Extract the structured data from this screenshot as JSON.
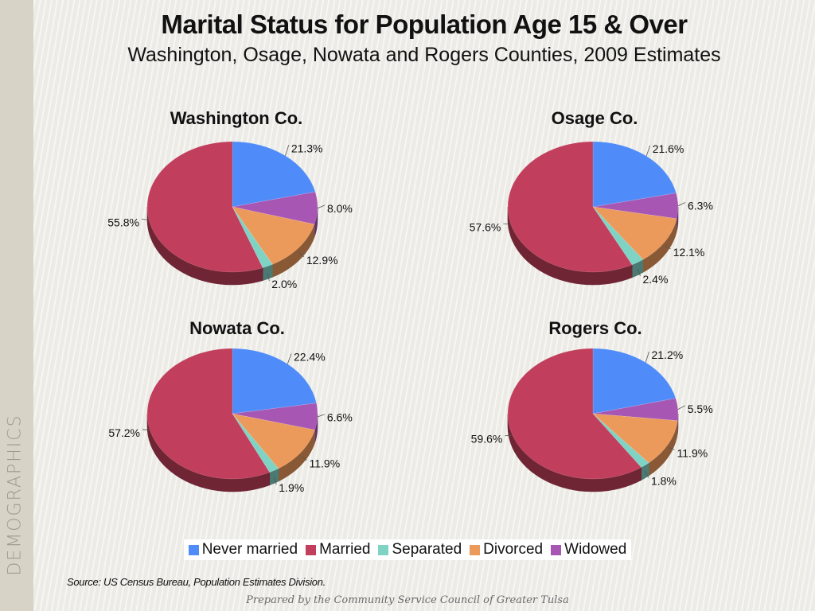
{
  "title": "Marital Status for Population Age 15 & Over",
  "subtitle": "Washington, Osage, Nowata and Rogers Counties, 2009 Estimates",
  "sidebar_label": "DEMOGRAPHICS",
  "source": "Source: US Census Bureau, Population Estimates Division.",
  "footer": "Prepared by the Community Service Council of Greater Tulsa",
  "colors": {
    "never_married": "#4f8cf9",
    "married": "#c13f5c",
    "separated": "#7fd3c4",
    "divorced": "#ec9a5b",
    "widowed": "#a757b3"
  },
  "chart_data": [
    {
      "type": "pie",
      "title": "Washington Co.",
      "categories": [
        "Never married",
        "Widowed",
        "Divorced",
        "Separated",
        "Married"
      ],
      "values": [
        21.3,
        8.0,
        12.9,
        2.0,
        55.8
      ],
      "labels": [
        "21.3%",
        "8.0%",
        "12.9%",
        "2.0%",
        "55.8%"
      ],
      "legend": "bottom"
    },
    {
      "type": "pie",
      "title": "Osage Co.",
      "categories": [
        "Never married",
        "Widowed",
        "Divorced",
        "Separated",
        "Married"
      ],
      "values": [
        21.6,
        6.3,
        12.1,
        2.4,
        57.6
      ],
      "labels": [
        "21.6%",
        "6.3%",
        "12.1%",
        "2.4%",
        "57.6%"
      ],
      "legend": "bottom"
    },
    {
      "type": "pie",
      "title": "Nowata Co.",
      "categories": [
        "Never married",
        "Widowed",
        "Divorced",
        "Separated",
        "Married"
      ],
      "values": [
        22.4,
        6.6,
        11.9,
        1.9,
        57.2
      ],
      "labels": [
        "22.4%",
        "6.6%",
        "11.9%",
        "1.9%",
        "57.2%"
      ],
      "legend": "bottom"
    },
    {
      "type": "pie",
      "title": "Rogers Co.",
      "categories": [
        "Never married",
        "Widowed",
        "Divorced",
        "Separated",
        "Married"
      ],
      "values": [
        21.2,
        5.5,
        11.9,
        1.8,
        59.6
      ],
      "labels": [
        "21.2%",
        "5.5%",
        "11.9%",
        "1.8%",
        "59.6%"
      ],
      "legend": "bottom"
    }
  ],
  "legend": {
    "items": [
      {
        "label": "Never married",
        "key": "never_married"
      },
      {
        "label": "Married",
        "key": "married"
      },
      {
        "label": "Separated",
        "key": "separated"
      },
      {
        "label": "Divorced",
        "key": "divorced"
      },
      {
        "label": "Widowed",
        "key": "widowed"
      }
    ]
  }
}
